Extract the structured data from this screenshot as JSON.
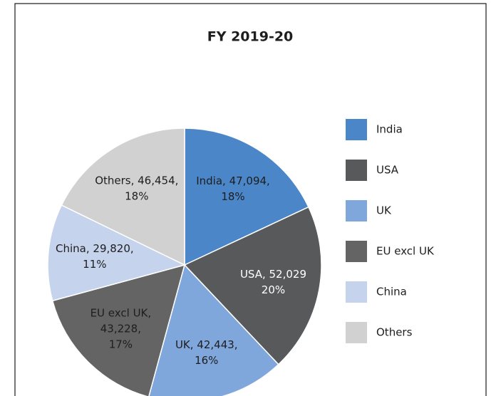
{
  "chart_data": {
    "type": "pie",
    "title": "FY 2019-20",
    "categories": [
      "India",
      "USA",
      "UK",
      "EU excl UK",
      "China",
      "Others"
    ],
    "values": [
      47094,
      52029,
      42443,
      43228,
      29820,
      46454
    ],
    "value_labels": [
      [
        "India, 47,094,",
        "18%"
      ],
      [
        "USA, 52,029",
        "20%"
      ],
      [
        "UK, 42,443,",
        "16%"
      ],
      [
        "EU excl UK,",
        "43,228,",
        "17%"
      ],
      [
        "China, 29,820,",
        "11%"
      ],
      [
        "Others, 46,454,",
        "18%"
      ]
    ],
    "colors": [
      "#4a86c8",
      "#58595b",
      "#7fa7dc",
      "#646464",
      "#c5d3ec",
      "#d1d1d1"
    ],
    "label_colors": [
      "#1e1e1e",
      "#ffffff",
      "#1e1e1e",
      "#1e1e1e",
      "#1e1e1e",
      "#1e1e1e"
    ],
    "legend": "right"
  }
}
